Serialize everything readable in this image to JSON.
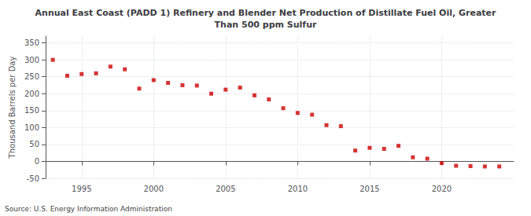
{
  "chart_data": {
    "type": "scatter",
    "title": "Annual East Coast (PADD 1) Refinery and Blender Net Production of Distillate Fuel Oil, Greater\nThan 500 ppm Sulfur",
    "ylabel": "Thousand Barrels per Day",
    "source": "Source: U.S. Energy Information Administration",
    "x": [
      1993,
      1994,
      1995,
      1996,
      1997,
      1998,
      1999,
      2000,
      2001,
      2002,
      2003,
      2004,
      2005,
      2006,
      2007,
      2008,
      2009,
      2010,
      2011,
      2012,
      2013,
      2014,
      2015,
      2016,
      2017,
      2018,
      2019,
      2020,
      2021,
      2022,
      2023,
      2024
    ],
    "values": [
      300,
      253,
      258,
      260,
      280,
      272,
      215,
      240,
      232,
      225,
      224,
      200,
      212,
      218,
      195,
      183,
      157,
      143,
      138,
      107,
      104,
      32,
      40,
      37,
      46,
      12,
      8,
      -5,
      -13,
      -14,
      -15,
      -15
    ],
    "color": "#cc0000",
    "marker": "square",
    "xlim": [
      1992.5,
      2025
    ],
    "xticks": [
      1995,
      2000,
      2005,
      2010,
      2015,
      2020
    ],
    "ylim": [
      -50,
      370
    ],
    "yticks": [
      -50,
      0,
      50,
      100,
      150,
      200,
      250,
      300,
      350
    ],
    "grid": true
  }
}
